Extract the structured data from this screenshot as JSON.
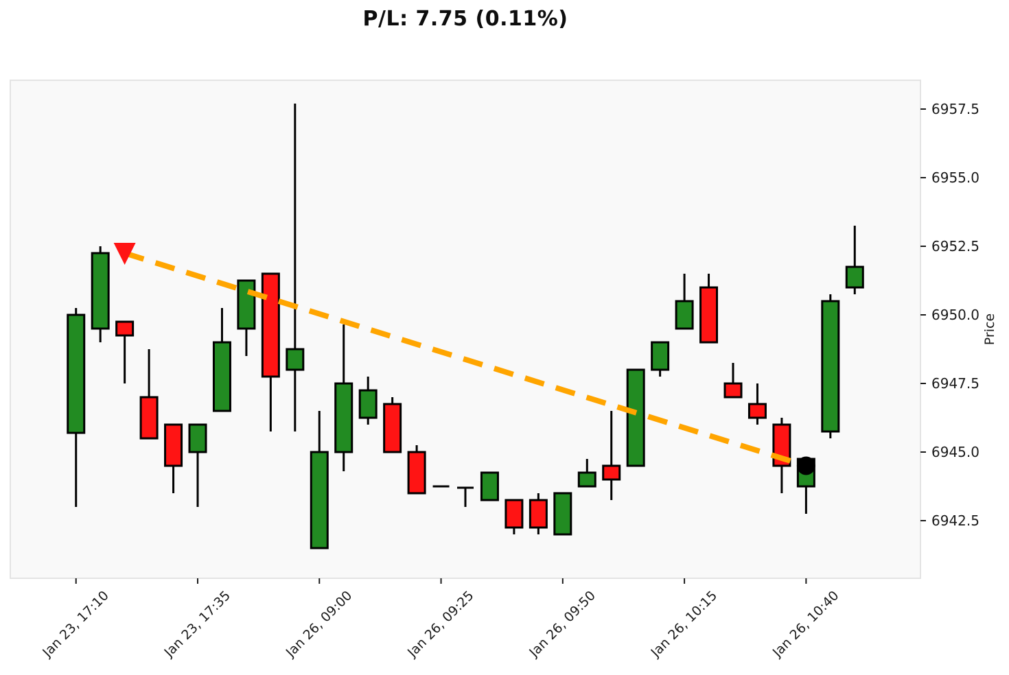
{
  "title": "P/L: 7.75 (0.11%)",
  "chart_data": {
    "type": "candlestick",
    "title": "P/L: 7.75 (0.11%)",
    "x_axis": {
      "tick_labels": [
        "Jan 23, 17:10",
        "Jan 23, 17:35",
        "Jan 26, 09:00",
        "Jan 26, 09:25",
        "Jan 26, 09:50",
        "Jan 26, 10:15",
        "Jan 26, 10:40"
      ],
      "tick_indices": [
        0,
        5,
        10,
        15,
        20,
        25,
        30
      ],
      "range_index": [
        -2.7,
        34.7
      ]
    },
    "y_axis": {
      "label": "Price",
      "ticks": [
        6942.5,
        6945.0,
        6947.5,
        6950.0,
        6952.5,
        6955.0,
        6957.5
      ],
      "range": [
        6940.4,
        6958.55
      ]
    },
    "grid": false,
    "legend": null,
    "candles": [
      {
        "t": "Jan 23, 17:10",
        "o": 6945.7,
        "h": 6950.25,
        "l": 6943.0,
        "c": 6950.0
      },
      {
        "t": "Jan 23, 17:15",
        "o": 6949.5,
        "h": 6952.5,
        "l": 6949.0,
        "c": 6952.25
      },
      {
        "t": "Jan 23, 17:20",
        "o": 6949.75,
        "h": 6949.75,
        "l": 6947.5,
        "c": 6949.25
      },
      {
        "t": "Jan 23, 17:25",
        "o": 6947.0,
        "h": 6948.75,
        "l": 6945.5,
        "c": 6945.5
      },
      {
        "t": "Jan 23, 17:30",
        "o": 6946.0,
        "h": 6946.0,
        "l": 6943.5,
        "c": 6944.5
      },
      {
        "t": "Jan 23, 17:35",
        "o": 6945.0,
        "h": 6946.0,
        "l": 6943.0,
        "c": 6946.0
      },
      {
        "t": "Jan 23, 17:40",
        "o": 6946.5,
        "h": 6950.25,
        "l": 6946.5,
        "c": 6949.0
      },
      {
        "t": "Jan 23, 17:45",
        "o": 6949.5,
        "h": 6951.25,
        "l": 6948.5,
        "c": 6951.25
      },
      {
        "t": "Jan 23, 17:50",
        "o": 6951.5,
        "h": 6951.5,
        "l": 6945.75,
        "c": 6947.75
      },
      {
        "t": "Jan 23, 17:55",
        "o": 6948.0,
        "h": 6957.7,
        "l": 6945.75,
        "c": 6948.75
      },
      {
        "t": "Jan 26, 09:00",
        "o": 6941.5,
        "h": 6946.5,
        "l": 6941.5,
        "c": 6945.0
      },
      {
        "t": "Jan 26, 09:05",
        "o": 6945.0,
        "h": 6949.65,
        "l": 6944.3,
        "c": 6947.5
      },
      {
        "t": "Jan 26, 09:10",
        "o": 6946.25,
        "h": 6947.75,
        "l": 6946.0,
        "c": 6947.25
      },
      {
        "t": "Jan 26, 09:15",
        "o": 6946.75,
        "h": 6947.0,
        "l": 6945.0,
        "c": 6945.0
      },
      {
        "t": "Jan 26, 09:20",
        "o": 6945.0,
        "h": 6945.25,
        "l": 6943.5,
        "c": 6943.5
      },
      {
        "t": "Jan 26, 09:25",
        "o": 6943.75,
        "h": 6943.75,
        "l": 6943.75,
        "c": 6943.75
      },
      {
        "t": "Jan 26, 09:30",
        "o": 6943.7,
        "h": 6943.7,
        "l": 6943.0,
        "c": 6943.7
      },
      {
        "t": "Jan 26, 09:35",
        "o": 6943.25,
        "h": 6944.25,
        "l": 6943.25,
        "c": 6944.25
      },
      {
        "t": "Jan 26, 09:40",
        "o": 6943.25,
        "h": 6943.25,
        "l": 6942.0,
        "c": 6942.25
      },
      {
        "t": "Jan 26, 09:45",
        "o": 6943.25,
        "h": 6943.5,
        "l": 6942.0,
        "c": 6942.25
      },
      {
        "t": "Jan 26, 09:50",
        "o": 6942.0,
        "h": 6943.5,
        "l": 6942.0,
        "c": 6943.5
      },
      {
        "t": "Jan 26, 09:55",
        "o": 6943.75,
        "h": 6944.75,
        "l": 6943.75,
        "c": 6944.25
      },
      {
        "t": "Jan 26, 10:00",
        "o": 6944.5,
        "h": 6946.5,
        "l": 6943.25,
        "c": 6944.0
      },
      {
        "t": "Jan 26, 10:05",
        "o": 6944.5,
        "h": 6948.0,
        "l": 6944.5,
        "c": 6948.0
      },
      {
        "t": "Jan 26, 10:10",
        "o": 6948.0,
        "h": 6949.0,
        "l": 6947.75,
        "c": 6949.0
      },
      {
        "t": "Jan 26, 10:15",
        "o": 6949.5,
        "h": 6951.5,
        "l": 6949.5,
        "c": 6950.5
      },
      {
        "t": "Jan 26, 10:20",
        "o": 6951.0,
        "h": 6951.5,
        "l": 6949.0,
        "c": 6949.0
      },
      {
        "t": "Jan 26, 10:25",
        "o": 6947.5,
        "h": 6948.25,
        "l": 6947.0,
        "c": 6947.0
      },
      {
        "t": "Jan 26, 10:30",
        "o": 6946.75,
        "h": 6947.5,
        "l": 6946.0,
        "c": 6946.25
      },
      {
        "t": "Jan 26, 10:35",
        "o": 6946.0,
        "h": 6946.25,
        "l": 6943.5,
        "c": 6944.5
      },
      {
        "t": "Jan 26, 10:40",
        "o": 6943.75,
        "h": 6944.75,
        "l": 6942.75,
        "c": 6944.75
      },
      {
        "t": "Jan 26, 10:45",
        "o": 6945.75,
        "h": 6950.75,
        "l": 6945.5,
        "c": 6950.5
      },
      {
        "t": "Jan 26, 10:50",
        "o": 6951.0,
        "h": 6953.25,
        "l": 6950.75,
        "c": 6951.75
      }
    ],
    "markers": {
      "entry": {
        "index": 2,
        "time": "Jan 23, 17:20",
        "price": 6952.25,
        "shape": "triangle-down",
        "color": "#ff1414"
      },
      "exit": {
        "index": 30,
        "time": "Jan 26, 10:40",
        "price": 6944.5,
        "shape": "dot",
        "color": "#000000"
      },
      "connector": {
        "style": "dashed",
        "color": "#ffa500"
      }
    },
    "colors": {
      "up": "#228b22",
      "down": "#ff1414",
      "wick": "#000000",
      "edge": "#000000",
      "plot_bg": "#f9f9f9",
      "fig_bg": "#ffffff",
      "border": "#e4e4e4",
      "tick_text": "#1a1a1a"
    }
  }
}
